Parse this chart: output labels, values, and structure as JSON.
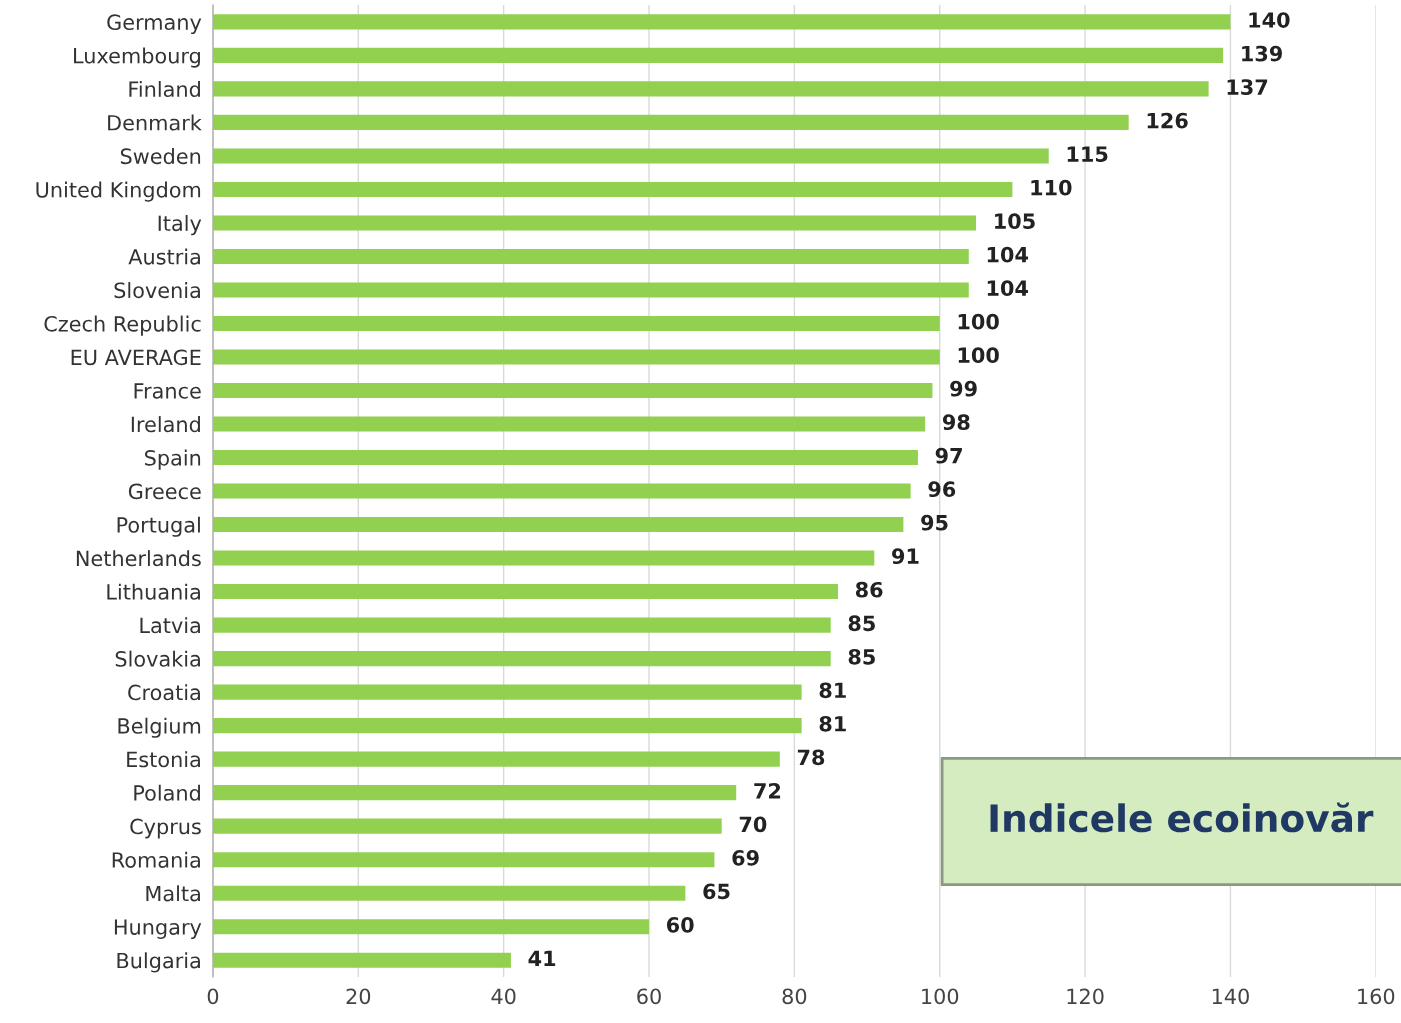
{
  "chart_data": {
    "type": "bar",
    "orientation": "horizontal",
    "title": "Indicele ecoinovăr",
    "categories": [
      "Germany",
      "Luxembourg",
      "Finland",
      "Denmark",
      "Sweden",
      "United Kingdom",
      "Italy",
      "Austria",
      "Slovenia",
      "Czech Republic",
      "EU AVERAGE",
      "France",
      "Ireland",
      "Spain",
      "Greece",
      "Portugal",
      "Netherlands",
      "Lithuania",
      "Latvia",
      "Slovakia",
      "Croatia",
      "Belgium",
      "Estonia",
      "Poland",
      "Cyprus",
      "Romania",
      "Malta",
      "Hungary",
      "Bulgaria"
    ],
    "values": [
      140,
      139,
      137,
      126,
      115,
      110,
      105,
      104,
      104,
      100,
      100,
      99,
      98,
      97,
      96,
      95,
      91,
      86,
      85,
      85,
      81,
      81,
      78,
      72,
      70,
      69,
      65,
      60,
      41
    ],
    "color": "#92d050",
    "xlim": [
      0,
      160
    ],
    "xticks": [
      0,
      20,
      40,
      60,
      80,
      100,
      120,
      140,
      160
    ],
    "grid": "x",
    "data_labels": true
  }
}
